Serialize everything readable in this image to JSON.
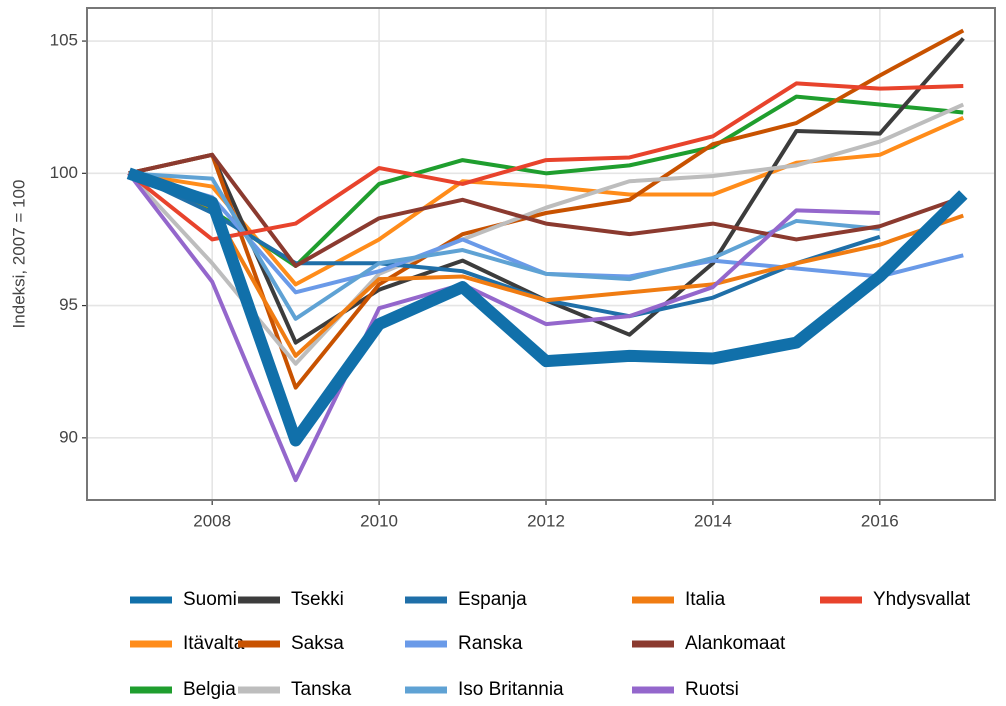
{
  "chart_data": {
    "type": "line",
    "y_label": "Indeksi, 2007 = 100",
    "x": [
      2007,
      2008,
      2009,
      2010,
      2011,
      2012,
      2013,
      2014,
      2015,
      2016,
      2017
    ],
    "xlim": [
      2006.5,
      2017.38
    ],
    "xticks": [
      2008,
      2010,
      2012,
      2014,
      2016
    ],
    "ylim": [
      87.65,
      106.25
    ],
    "yticks": [
      90,
      95,
      100,
      105
    ],
    "grid": true,
    "legend": "bottom",
    "series": [
      {
        "name": "Suomi",
        "color": "#1170aa",
        "values": [
          100,
          98.9,
          89.9,
          94.3,
          95.7,
          92.9,
          93.1,
          93.0,
          93.6,
          96.1,
          99.2
        ]
      },
      {
        "name": "Itävalta",
        "color": "#ff8c1a",
        "values": [
          100,
          99.5,
          95.8,
          97.5,
          99.7,
          99.5,
          99.2,
          99.2,
          100.4,
          100.7,
          102.1
        ]
      },
      {
        "name": "Belgia",
        "color": "#1f9e2e",
        "values": [
          100,
          98.6,
          96.5,
          99.6,
          100.5,
          100.0,
          100.3,
          101.0,
          102.9,
          102.6,
          102.3
        ]
      },
      {
        "name": "Tsekki",
        "color": "#3c3c3c",
        "values": [
          100,
          100.7,
          93.6,
          95.6,
          96.7,
          95.2,
          93.9,
          96.6,
          101.6,
          101.5,
          105.1
        ]
      },
      {
        "name": "Saksa",
        "color": "#c85200",
        "values": [
          100,
          100.7,
          91.9,
          95.8,
          97.7,
          98.5,
          99.0,
          101.1,
          101.9,
          103.7,
          105.4
        ]
      },
      {
        "name": "Tanska",
        "color": "#bdbdbd",
        "values": [
          100,
          96.6,
          92.8,
          96.2,
          97.5,
          98.7,
          99.7,
          99.9,
          100.3,
          101.2,
          102.6
        ]
      },
      {
        "name": "Espanja",
        "color": "#1f6fa8",
        "values": [
          100,
          98.5,
          96.6,
          96.6,
          96.3,
          95.2,
          94.6,
          95.3,
          96.6,
          97.6,
          null
        ]
      },
      {
        "name": "Ranska",
        "color": "#6a9ae8",
        "values": [
          100,
          99.1,
          95.5,
          96.3,
          97.5,
          96.2,
          96.1,
          96.7,
          96.4,
          96.1,
          96.9
        ]
      },
      {
        "name": "Iso Britannia",
        "color": "#5fa2d4",
        "values": [
          100,
          99.8,
          94.5,
          96.6,
          97.1,
          96.2,
          96.0,
          96.8,
          98.2,
          97.9,
          null
        ]
      },
      {
        "name": "Italia",
        "color": "#f07c12",
        "values": [
          100,
          98.7,
          93.1,
          96.0,
          96.1,
          95.2,
          95.5,
          95.8,
          96.6,
          97.3,
          98.4
        ]
      },
      {
        "name": "Alankomaat",
        "color": "#8b3a2f",
        "values": [
          100,
          100.7,
          96.5,
          98.3,
          99.0,
          98.1,
          97.7,
          98.1,
          97.5,
          98.0,
          99.1
        ]
      },
      {
        "name": "Ruotsi",
        "color": "#9467cc",
        "values": [
          100,
          95.9,
          88.4,
          94.9,
          95.8,
          94.3,
          94.6,
          95.7,
          98.6,
          98.5,
          null
        ]
      },
      {
        "name": "Yhdysvallat",
        "color": "#e8432c",
        "values": [
          100,
          97.5,
          98.1,
          100.2,
          99.6,
          100.5,
          100.6,
          101.4,
          103.4,
          103.2,
          103.3
        ]
      }
    ]
  }
}
